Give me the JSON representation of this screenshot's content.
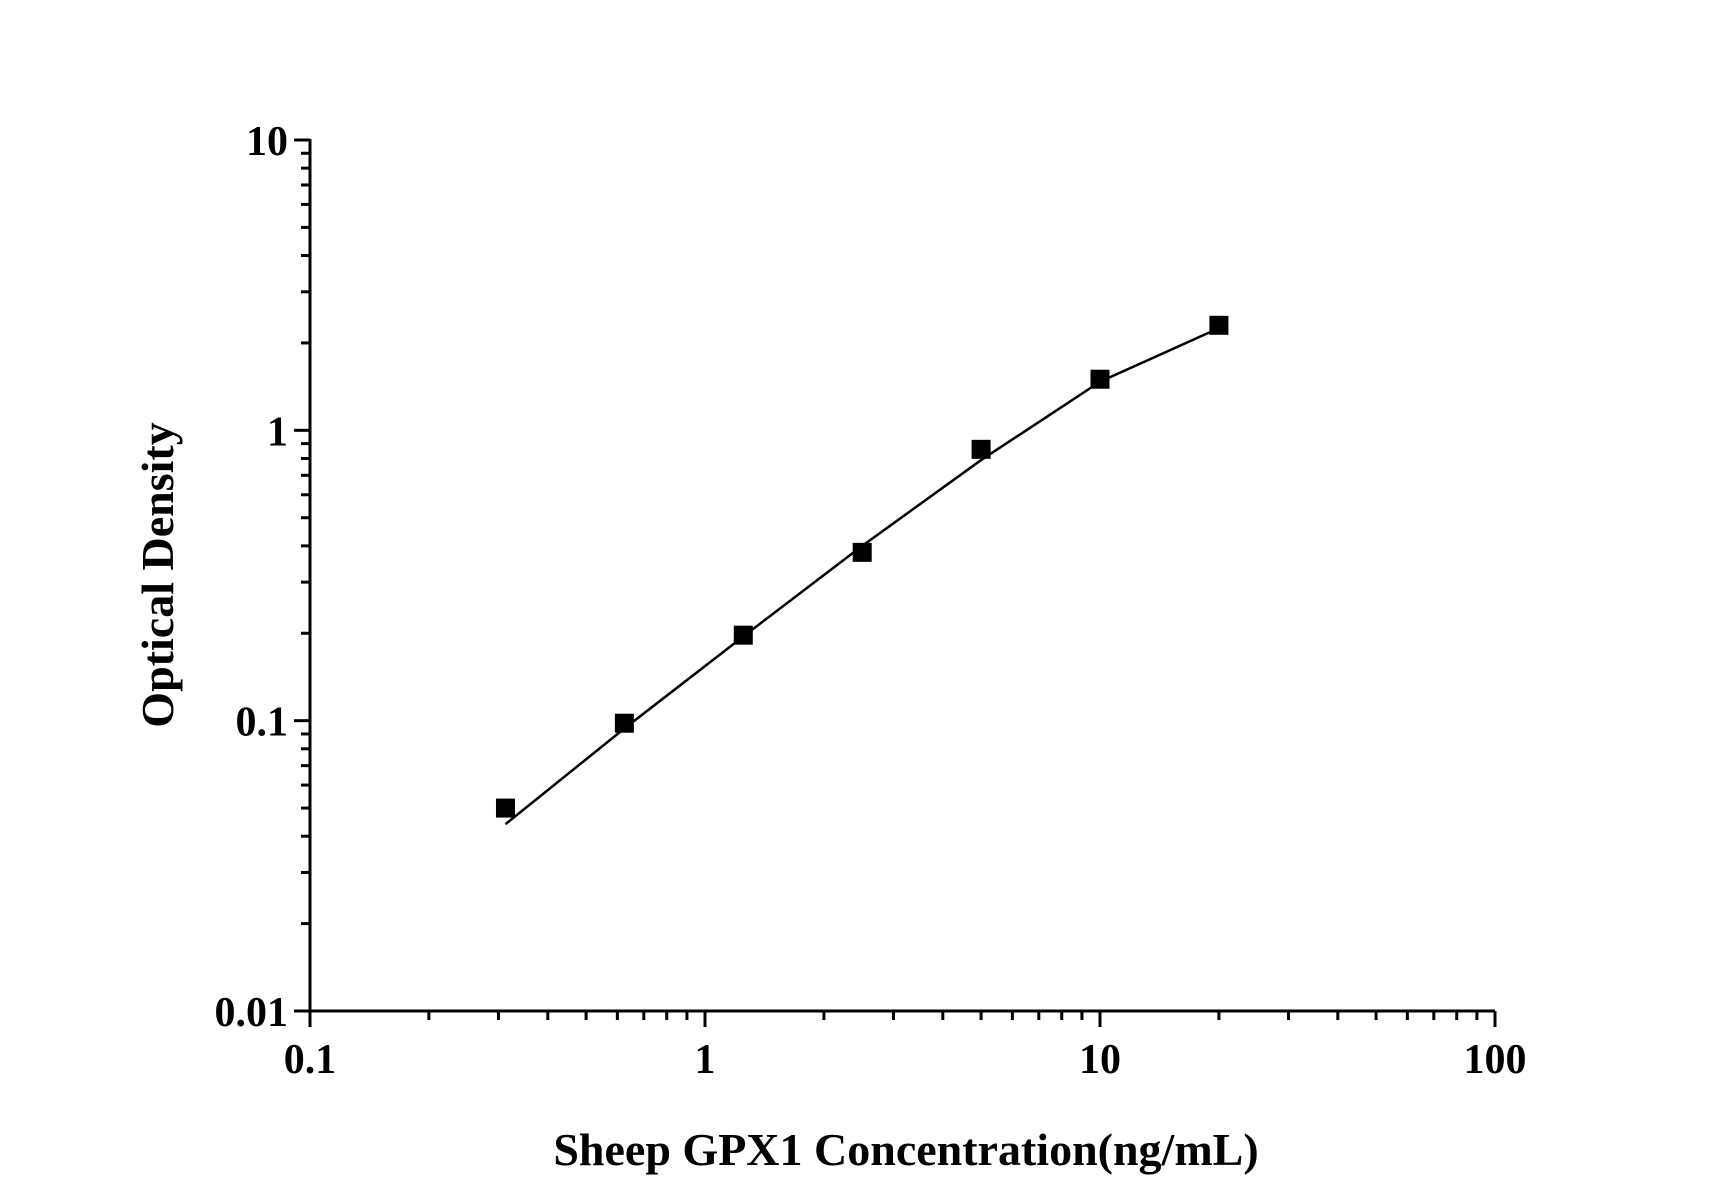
{
  "chart_data": {
    "type": "scatter",
    "title": "",
    "xlabel": "Sheep GPX1 Concentration(ng/mL)",
    "ylabel": "Optical Density",
    "xscale": "log",
    "yscale": "log",
    "xlim": [
      0.1,
      100
    ],
    "ylim": [
      0.01,
      10
    ],
    "x_tick_labels": [
      "0.1",
      "1",
      "10",
      "100"
    ],
    "y_tick_labels": [
      "0.01",
      "0.1",
      "1",
      "10"
    ],
    "grid": false,
    "legend": "none",
    "series": [
      {
        "marker": "square",
        "color": "#000000",
        "x": [
          0.3125,
          0.625,
          1.25,
          2.5,
          5,
          10,
          20
        ],
        "y": [
          0.05,
          0.098,
          0.197,
          0.38,
          0.86,
          1.5,
          2.3
        ]
      }
    ],
    "fit_curve": {
      "color": "#000000",
      "x": [
        0.3125,
        0.625,
        1.25,
        2.5,
        5,
        10,
        20
      ],
      "y": [
        0.044,
        0.094,
        0.195,
        0.4,
        0.79,
        1.47,
        2.25
      ]
    }
  }
}
